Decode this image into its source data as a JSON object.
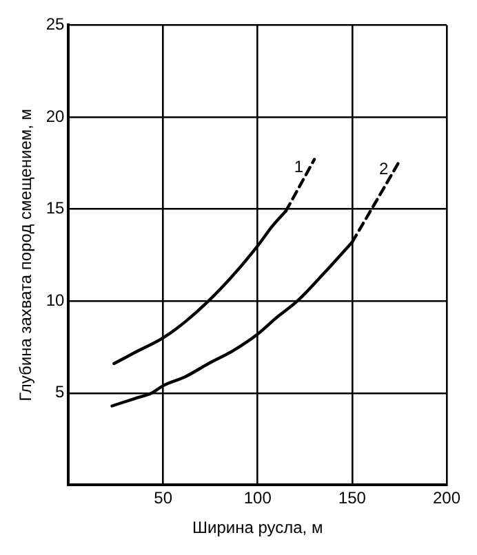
{
  "chart_data": {
    "type": "line",
    "xlabel": "Ширина русла, м",
    "ylabel": "Глубина захвата пород смещением, м",
    "xlim": [
      0,
      200
    ],
    "ylim": [
      0,
      25
    ],
    "xticks": [
      50,
      100,
      150,
      200
    ],
    "yticks": [
      5,
      10,
      15,
      20,
      25
    ],
    "grid": true,
    "legend": false,
    "marker": "none",
    "series": [
      {
        "color": "#000000",
        "line_style": "solid",
        "x": [
          24,
          35,
          50,
          62,
          74,
          87,
          100,
          108,
          115
        ],
        "values": [
          6.6,
          7.2,
          8.0,
          8.9,
          10.0,
          11.4,
          13.0,
          14.1,
          14.9
        ]
      },
      {
        "name": "1",
        "color": "#000000",
        "line_style": "dashed",
        "x": [
          115,
          122,
          130
        ],
        "values": [
          14.9,
          16.2,
          17.7
        ]
      },
      {
        "color": "#000000",
        "line_style": "solid",
        "x": [
          23,
          35,
          44,
          50,
          62,
          74,
          87,
          100,
          110,
          121,
          135,
          150
        ],
        "values": [
          4.3,
          4.7,
          5.0,
          5.4,
          5.9,
          6.6,
          7.3,
          8.2,
          9.1,
          10.0,
          11.5,
          13.2
        ]
      },
      {
        "name": "2",
        "color": "#000000",
        "line_style": "dashed",
        "x": [
          150,
          162,
          175
        ],
        "values": [
          13.2,
          15.3,
          17.6
        ]
      }
    ]
  }
}
